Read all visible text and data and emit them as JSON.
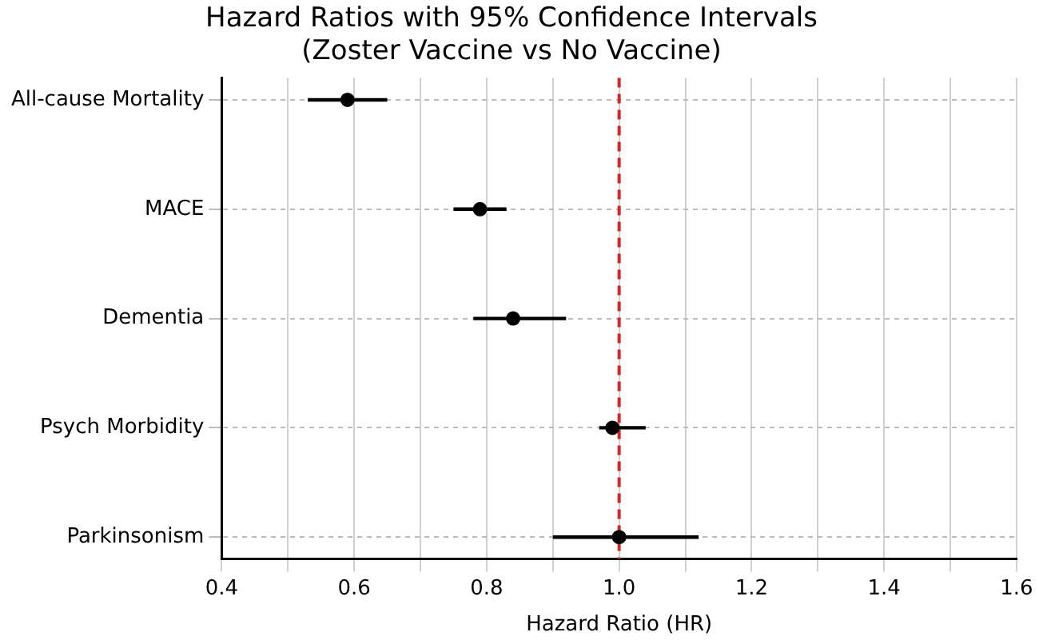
{
  "chart_data": {
    "type": "scatter",
    "orientation": "horizontal",
    "title": "Hazard Ratios with 95% Confidence Intervals\n(Zoster Vaccine vs No Vaccine)",
    "xlabel": "Hazard Ratio (HR)",
    "categories": [
      "All-cause Mortality",
      "MACE",
      "Dementia",
      "Psych Morbidity",
      "Parkinsonism"
    ],
    "series": [
      {
        "color": "#000000",
        "values": [
          0.59,
          0.79,
          0.84,
          0.99,
          1.0
        ],
        "errors": [
          [
            0.53,
            0.65
          ],
          [
            0.75,
            0.83
          ],
          [
            0.78,
            0.92
          ],
          [
            0.97,
            1.04
          ],
          [
            0.9,
            1.12
          ]
        ]
      }
    ],
    "xlim": [
      0.4,
      1.6
    ],
    "xticks": [
      0.4,
      {
        "value": 0.5,
        "label": null
      },
      0.6,
      {
        "value": 0.7,
        "label": null
      },
      0.8,
      {
        "value": 0.9,
        "label": null
      },
      {
        "value": 1,
        "label": "1.0"
      },
      {
        "value": 1.1,
        "label": null
      },
      1.2,
      {
        "value": 1.3,
        "label": null
      },
      1.4,
      {
        "value": 1.5,
        "label": null
      },
      1.6
    ],
    "ref_lines": [
      {
        "axis": "x",
        "value": 1.0,
        "color": "#d62728",
        "line_style": "dashed"
      }
    ],
    "grid": true,
    "legend": false,
    "marker": "circle"
  }
}
